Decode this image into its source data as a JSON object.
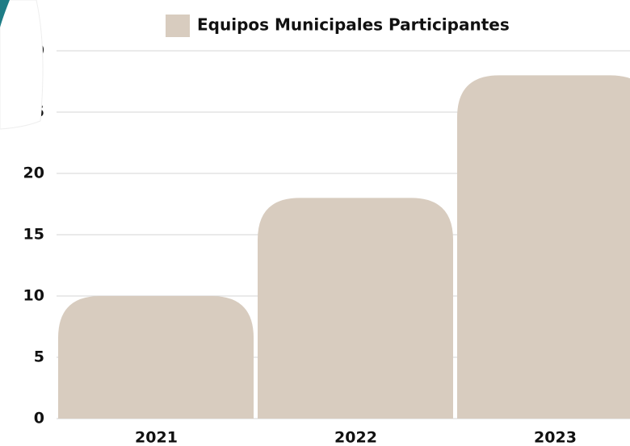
{
  "chart_data": {
    "type": "bar",
    "categories": [
      "2021",
      "2022",
      "2023"
    ],
    "series": [
      {
        "name": "Equipos Municipales Participantes",
        "color": "#d8ccbf",
        "values": [
          10,
          18,
          28
        ]
      }
    ],
    "ylim": [
      0,
      30
    ],
    "yticks": [
      0,
      5,
      10,
      15,
      20,
      25,
      30
    ],
    "grid": true,
    "legend": "top"
  }
}
